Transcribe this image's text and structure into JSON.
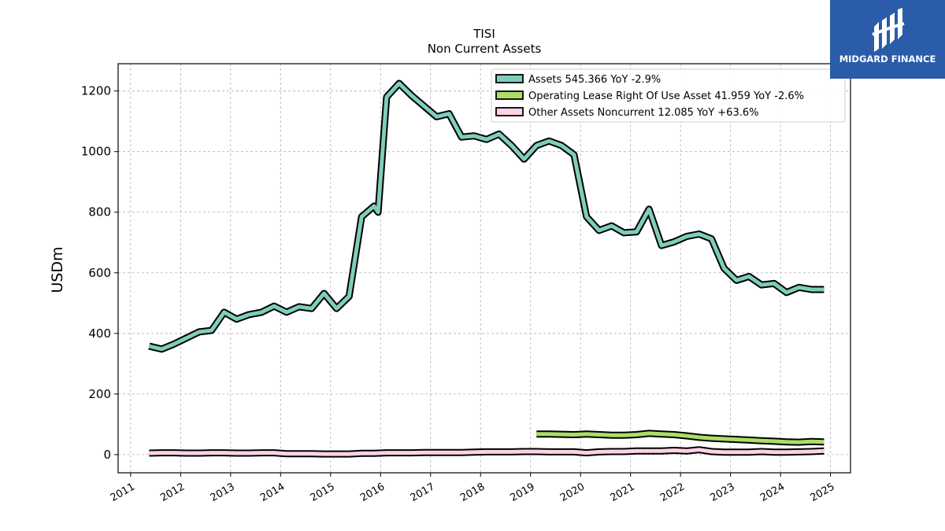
{
  "logo": {
    "text": "MIDGARD FINANCE",
    "colors": {
      "background": "#2a5caa",
      "foreground": "#ffffff"
    }
  },
  "chart_data": {
    "type": "line",
    "title": "TISI",
    "subtitle": "Non Current  Assets",
    "ylabel": "USDm",
    "xlabel": "",
    "xlim": [
      2010.75,
      2025.4
    ],
    "ylim": [
      -60,
      1290
    ],
    "yticks": [
      0,
      200,
      400,
      600,
      800,
      1000,
      1200
    ],
    "xticks": [
      "2011",
      "2012",
      "2013",
      "2014",
      "2015",
      "2016",
      "2017",
      "2018",
      "2019",
      "2020",
      "2021",
      "2022",
      "2023",
      "2024",
      "2025"
    ],
    "grid": true,
    "legend_position": "top-right",
    "series": [
      {
        "name": "Assets  545.366 YoY -2.9%",
        "color": "#7fcdbb",
        "x": [
          2011.37,
          2011.62,
          2011.87,
          2012.12,
          2012.37,
          2012.62,
          2012.87,
          2013.12,
          2013.37,
          2013.62,
          2013.87,
          2014.12,
          2014.37,
          2014.62,
          2014.87,
          2015.12,
          2015.37,
          2015.62,
          2015.87,
          2015.95,
          2016.12,
          2016.37,
          2016.62,
          2016.87,
          2017.12,
          2017.37,
          2017.62,
          2017.87,
          2018.12,
          2018.37,
          2018.62,
          2018.87,
          2019.12,
          2019.37,
          2019.62,
          2019.87,
          2020.12,
          2020.37,
          2020.62,
          2020.87,
          2021.12,
          2021.37,
          2021.62,
          2021.87,
          2022.12,
          2022.37,
          2022.62,
          2022.87,
          2023.12,
          2023.37,
          2023.62,
          2023.87,
          2024.12,
          2024.37,
          2024.62,
          2024.87
        ],
        "y": [
          358,
          348,
          365,
          385,
          405,
          410,
          470,
          447,
          462,
          470,
          490,
          470,
          488,
          482,
          532,
          482,
          522,
          785,
          820,
          800,
          1180,
          1225,
          1185,
          1150,
          1115,
          1125,
          1048,
          1052,
          1040,
          1058,
          1020,
          975,
          1020,
          1035,
          1020,
          990,
          785,
          740,
          755,
          732,
          735,
          810,
          690,
          702,
          720,
          728,
          712,
          615,
          575,
          588,
          560,
          565,
          535,
          552,
          545,
          545
        ]
      },
      {
        "name": "Operating Lease Right Of Use Asset  41.959 YoY -2.6%",
        "color": "#addd65",
        "x": [
          2019.12,
          2019.37,
          2019.62,
          2019.87,
          2020.12,
          2020.37,
          2020.62,
          2020.87,
          2021.12,
          2021.37,
          2021.62,
          2021.87,
          2022.12,
          2022.37,
          2022.62,
          2022.87,
          2023.12,
          2023.37,
          2023.62,
          2023.87,
          2024.12,
          2024.37,
          2024.62,
          2024.87
        ],
        "y": [
          68,
          68,
          67,
          66,
          68,
          66,
          64,
          64,
          66,
          70,
          68,
          66,
          62,
          57,
          54,
          52,
          50,
          48,
          46,
          44,
          42,
          41,
          43,
          42
        ]
      },
      {
        "name": "Other Assets Noncurrent  12.085 YoY +63.6%",
        "color": "#ffd1e8",
        "x": [
          2011.37,
          2011.62,
          2011.87,
          2012.12,
          2012.37,
          2012.62,
          2012.87,
          2013.12,
          2013.37,
          2013.62,
          2013.87,
          2014.12,
          2014.37,
          2014.62,
          2014.87,
          2015.12,
          2015.37,
          2015.62,
          2015.87,
          2016.12,
          2016.37,
          2016.62,
          2016.87,
          2017.12,
          2017.37,
          2017.62,
          2017.87,
          2018.12,
          2018.37,
          2018.62,
          2018.87,
          2019.12,
          2019.37,
          2019.62,
          2019.87,
          2020.12,
          2020.37,
          2020.62,
          2020.87,
          2021.12,
          2021.37,
          2021.62,
          2021.87,
          2022.12,
          2022.37,
          2022.62,
          2022.87,
          2023.12,
          2023.37,
          2023.62,
          2023.87,
          2024.12,
          2024.37,
          2024.62,
          2024.87
        ],
        "y": [
          5,
          6,
          6,
          5,
          5,
          6,
          6,
          5,
          5,
          6,
          6,
          3,
          3,
          3,
          2,
          2,
          2,
          4,
          4,
          6,
          6,
          6,
          7,
          7,
          7,
          7,
          8,
          9,
          9,
          9,
          10,
          10,
          9,
          9,
          9,
          6,
          9,
          10,
          10,
          12,
          12,
          12,
          14,
          12,
          16,
          10,
          8,
          8,
          8,
          10,
          8,
          8,
          9,
          10,
          12
        ]
      }
    ]
  }
}
